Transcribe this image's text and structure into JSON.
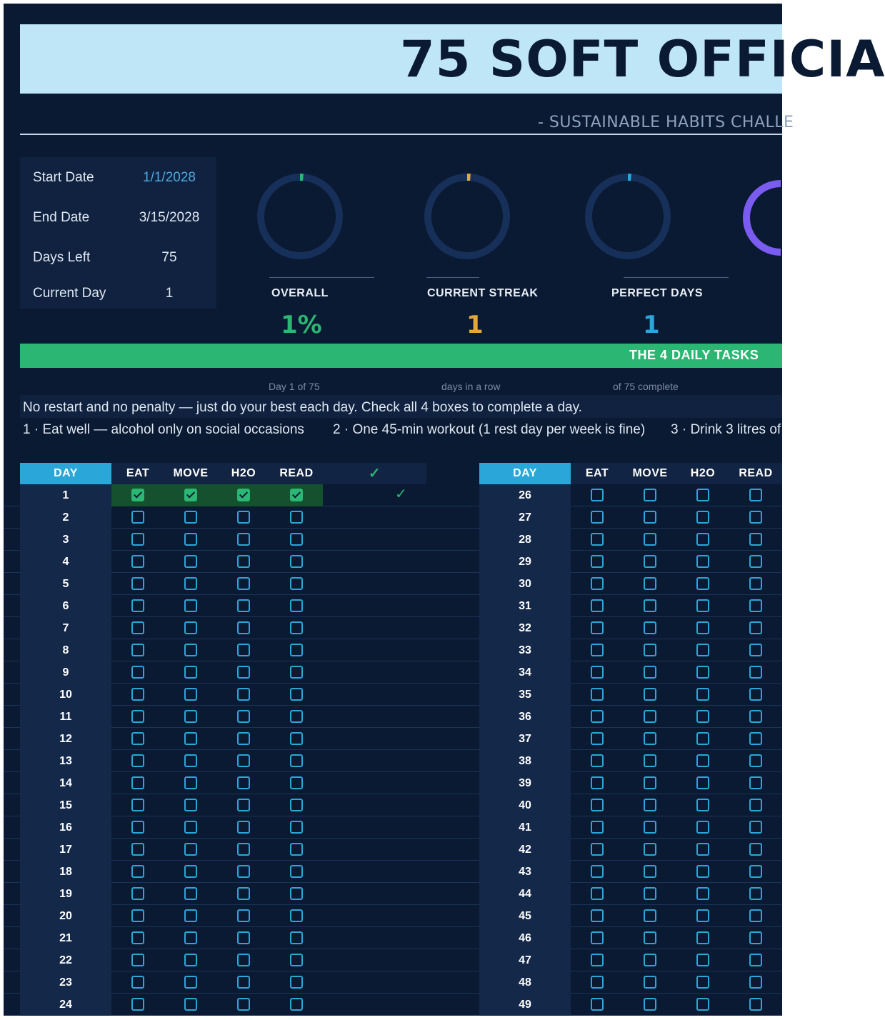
{
  "header": {
    "title": "75 SOFT OFFICIA",
    "subtitle": "- SUSTAINABLE HABITS CHALLE"
  },
  "info": {
    "rows": [
      {
        "label": "Start Date",
        "value": "1/1/2028",
        "highlight": true
      },
      {
        "label": "End Date",
        "value": "3/15/2028",
        "highlight": false
      },
      {
        "label": "Days Left",
        "value": "75",
        "highlight": false
      },
      {
        "label": "Current Day",
        "value": "1",
        "highlight": false
      }
    ]
  },
  "kpis": [
    {
      "label": "OVERALL",
      "value": "1%",
      "sub": "Day 1 of 75",
      "color": "#2bb673",
      "progress": 0.013
    },
    {
      "label": "CURRENT STREAK",
      "value": "1",
      "sub": "days in a row",
      "color": "#e3a83a",
      "progress": 0.013
    },
    {
      "label": "PERFECT DAYS",
      "value": "1",
      "sub": "of 75 complete",
      "color": "#2aa7d8",
      "progress": 0.013
    }
  ],
  "daily_tasks_banner": "THE 4 DAILY TASKS",
  "note": "No restart and no penalty — just do your best each day. Check all 4 boxes to complete a day.",
  "tasks": [
    {
      "num": "1",
      "text": "· Eat well — alcohol only on social occasions"
    },
    {
      "num": "2",
      "text": "· One 45-min workout (1 rest day per week is fine)"
    },
    {
      "num": "3",
      "text": "· Drink 3 litres of"
    }
  ],
  "table": {
    "headers": {
      "day": "DAY",
      "eat": "EAT",
      "move": "MOVE",
      "h2o": "H2O",
      "read": "READ",
      "done": "✓"
    },
    "left_days": [
      "1",
      "2",
      "3",
      "4",
      "5",
      "6",
      "7",
      "8",
      "9",
      "10",
      "11",
      "12",
      "13",
      "14",
      "15",
      "16",
      "17",
      "18",
      "19",
      "20",
      "21",
      "22",
      "23",
      "24"
    ],
    "right_days": [
      "26",
      "27",
      "28",
      "29",
      "30",
      "31",
      "32",
      "33",
      "34",
      "35",
      "36",
      "37",
      "38",
      "39",
      "40",
      "41",
      "42",
      "43",
      "44",
      "45",
      "46",
      "47",
      "48",
      "49"
    ],
    "checked_rows": [
      "1"
    ],
    "done_mark": "✓"
  },
  "colors": {
    "background": "#0b1a33",
    "banner": "#bfe6f6",
    "accent_green": "#2bb673",
    "accent_blue": "#2aa7d8",
    "accent_orange": "#e3a83a",
    "accent_purple": "#7b5cf0"
  }
}
